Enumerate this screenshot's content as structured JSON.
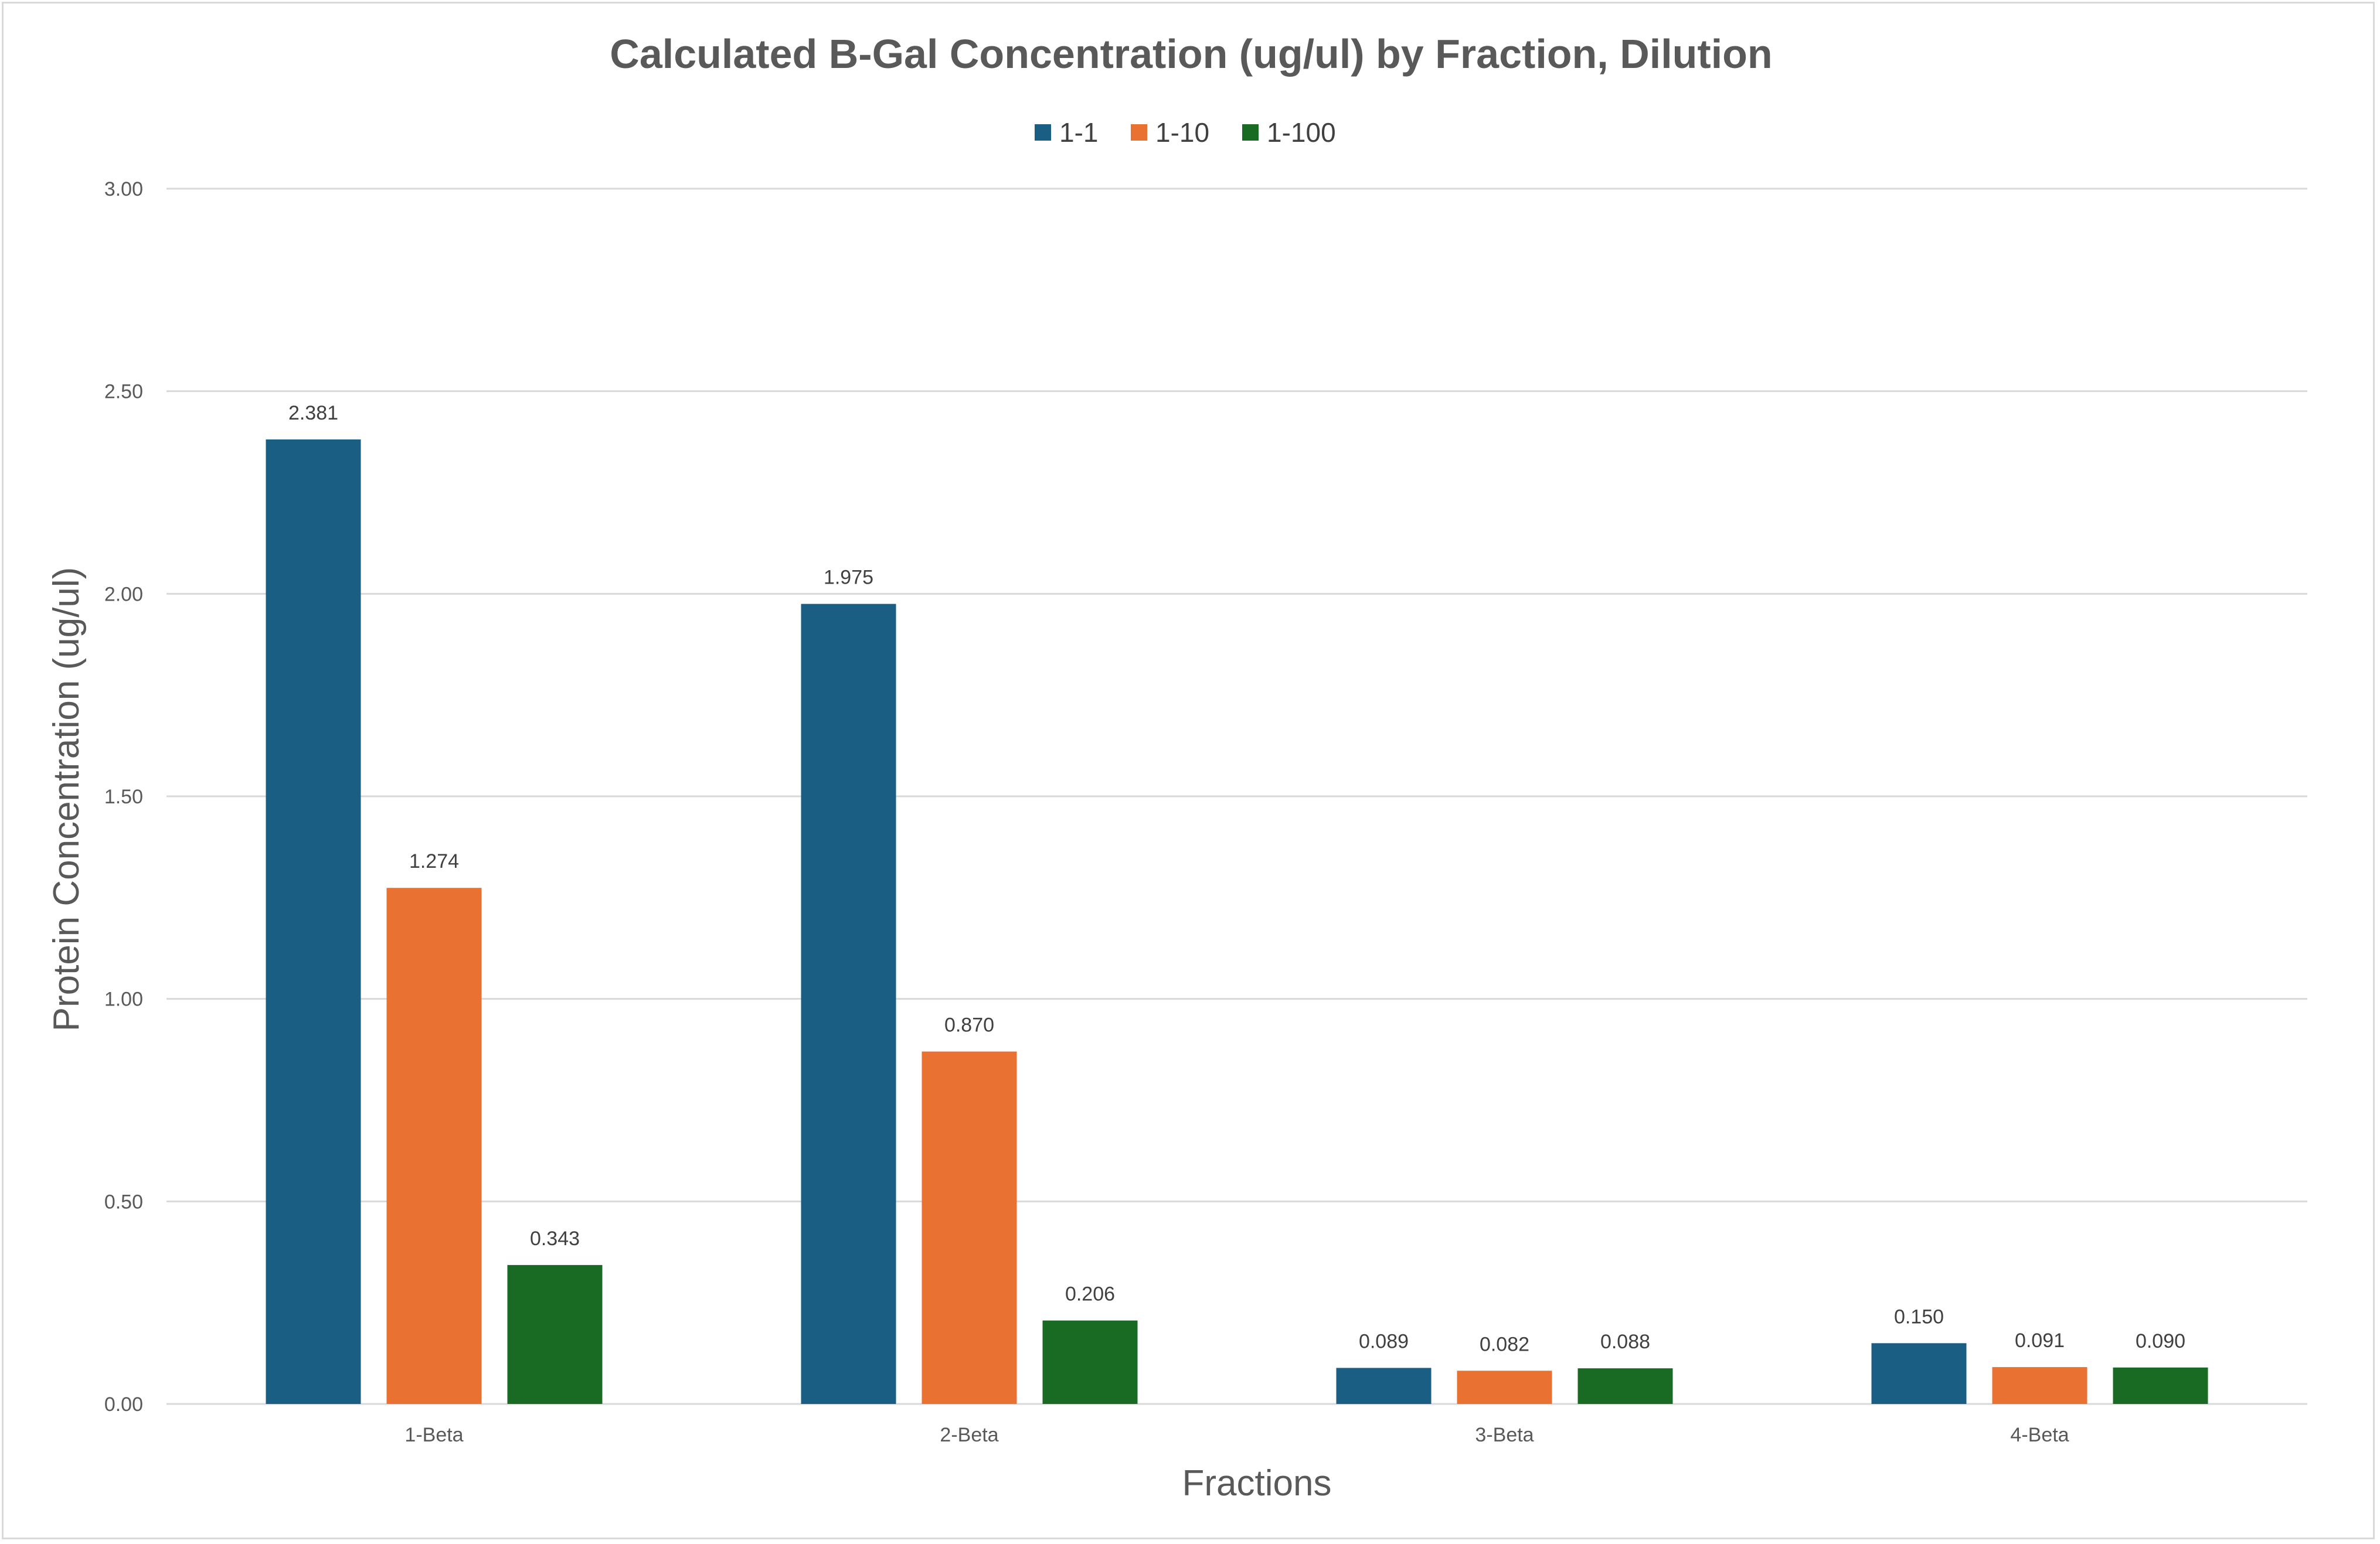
{
  "chart_data": {
    "type": "bar",
    "title": "Calculated B-Gal Concentration (ug/ul) by Fraction, Dilution",
    "xlabel": "Fractions",
    "ylabel": "Protein Concentration (ug/ul)",
    "categories": [
      "1-Beta",
      "2-Beta",
      "3-Beta",
      "4-Beta"
    ],
    "series": [
      {
        "name": "1-1",
        "color": "#1a5e84",
        "values": [
          2.381,
          1.975,
          0.089,
          0.15
        ],
        "labels": [
          "2.381",
          "1.975",
          "0.089",
          "0.150"
        ]
      },
      {
        "name": "1-10",
        "color": "#e97132",
        "values": [
          1.274,
          0.87,
          0.082,
          0.091
        ],
        "labels": [
          "1.274",
          "0.870",
          "0.082",
          "0.091"
        ]
      },
      {
        "name": "1-100",
        "color": "#196b24",
        "values": [
          0.343,
          0.206,
          0.088,
          0.09
        ],
        "labels": [
          "0.343",
          "0.206",
          "0.088",
          "0.090"
        ]
      }
    ],
    "ylim": [
      0,
      3
    ],
    "yticks": [
      0,
      0.5,
      1,
      1.5,
      2,
      2.5,
      3
    ],
    "ytick_labels": [
      "0.00",
      "0.50",
      "1.00",
      "1.50",
      "2.00",
      "2.50",
      "3.00"
    ],
    "grid": true,
    "legend_position": "top-center"
  }
}
